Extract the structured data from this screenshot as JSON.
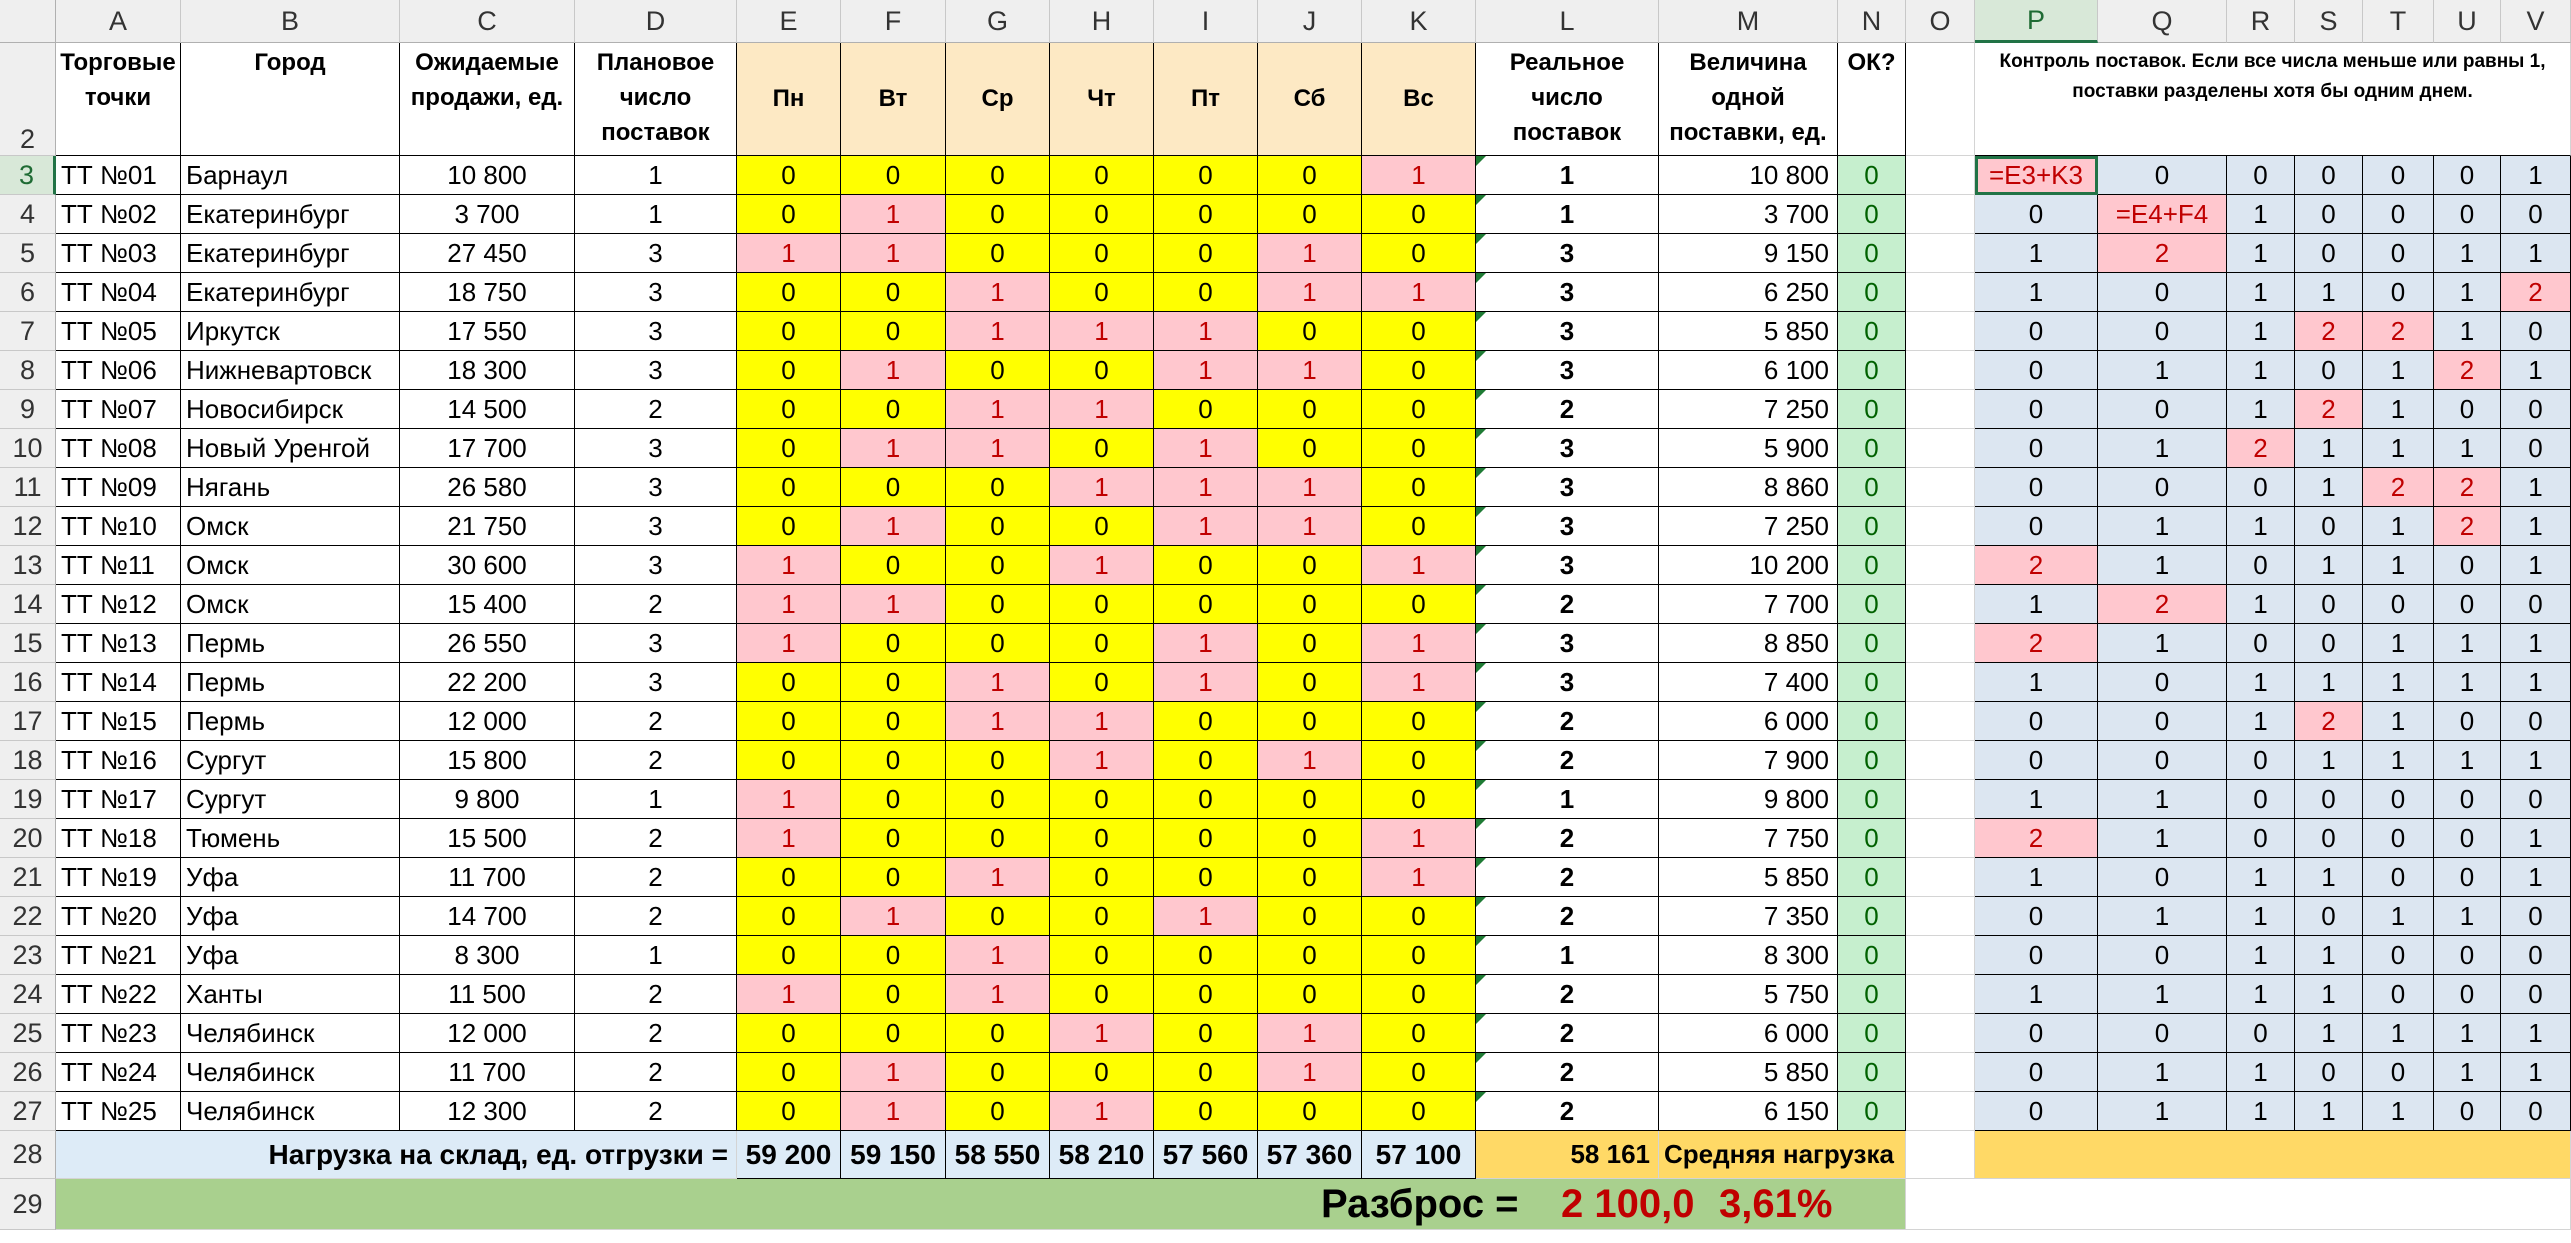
{
  "columns": [
    "A",
    "B",
    "C",
    "D",
    "E",
    "F",
    "G",
    "H",
    "I",
    "J",
    "K",
    "L",
    "M",
    "N",
    "O",
    "P",
    "Q",
    "R",
    "S",
    "T",
    "U",
    "V"
  ],
  "selected_column": "P",
  "selected_row": 3,
  "header": {
    "torg": "Торговые точки",
    "gorod": "Город",
    "ozhid": "Ожидаемые продажи, ед.",
    "plan": "Плановое число поставок",
    "days": [
      "Пн",
      "Вт",
      "Ср",
      "Чт",
      "Пт",
      "Сб",
      "Вс"
    ],
    "real": "Реальное число поставок",
    "velich": "Величина одной поставки, ед.",
    "ok": "ОК?",
    "control_note": "Контроль поставок. Если все числа меньше или равны 1, поставки разделены хотя бы одним днем."
  },
  "rows": [
    {
      "r": "3",
      "tt": "ТТ №01",
      "city": "Барнаул",
      "sales": "10 800",
      "plan": "1",
      "days": [
        "0",
        "0",
        "0",
        "0",
        "0",
        "0",
        "1"
      ],
      "real": "1",
      "size": "10 800",
      "ok": "0",
      "ctl": [
        "=E3+K3",
        "0",
        "0",
        "0",
        "0",
        "0",
        "1"
      ]
    },
    {
      "r": "4",
      "tt": "ТТ №02",
      "city": "Екатеринбург",
      "sales": "3 700",
      "plan": "1",
      "days": [
        "0",
        "1",
        "0",
        "0",
        "0",
        "0",
        "0"
      ],
      "real": "1",
      "size": "3 700",
      "ok": "0",
      "ctl": [
        "0",
        "=E4+F4",
        "1",
        "0",
        "0",
        "0",
        "0"
      ]
    },
    {
      "r": "5",
      "tt": "ТТ №03",
      "city": "Екатеринбург",
      "sales": "27 450",
      "plan": "3",
      "days": [
        "1",
        "1",
        "0",
        "0",
        "0",
        "1",
        "0"
      ],
      "real": "3",
      "size": "9 150",
      "ok": "0",
      "ctl": [
        "1",
        "2",
        "1",
        "0",
        "0",
        "1",
        "1"
      ]
    },
    {
      "r": "6",
      "tt": "ТТ №04",
      "city": "Екатеринбург",
      "sales": "18 750",
      "plan": "3",
      "days": [
        "0",
        "0",
        "1",
        "0",
        "0",
        "1",
        "1"
      ],
      "real": "3",
      "size": "6 250",
      "ok": "0",
      "ctl": [
        "1",
        "0",
        "1",
        "1",
        "0",
        "1",
        "2"
      ]
    },
    {
      "r": "7",
      "tt": "ТТ №05",
      "city": "Иркутск",
      "sales": "17 550",
      "plan": "3",
      "days": [
        "0",
        "0",
        "1",
        "1",
        "1",
        "0",
        "0"
      ],
      "real": "3",
      "size": "5 850",
      "ok": "0",
      "ctl": [
        "0",
        "0",
        "1",
        "2",
        "2",
        "1",
        "0"
      ]
    },
    {
      "r": "8",
      "tt": "ТТ №06",
      "city": "Нижневартовск",
      "sales": "18 300",
      "plan": "3",
      "days": [
        "0",
        "1",
        "0",
        "0",
        "1",
        "1",
        "0"
      ],
      "real": "3",
      "size": "6 100",
      "ok": "0",
      "ctl": [
        "0",
        "1",
        "1",
        "0",
        "1",
        "2",
        "1"
      ]
    },
    {
      "r": "9",
      "tt": "ТТ №07",
      "city": "Новосибирск",
      "sales": "14 500",
      "plan": "2",
      "days": [
        "0",
        "0",
        "1",
        "1",
        "0",
        "0",
        "0"
      ],
      "real": "2",
      "size": "7 250",
      "ok": "0",
      "ctl": [
        "0",
        "0",
        "1",
        "2",
        "1",
        "0",
        "0"
      ]
    },
    {
      "r": "10",
      "tt": "ТТ №08",
      "city": "Новый Уренгой",
      "sales": "17 700",
      "plan": "3",
      "days": [
        "0",
        "1",
        "1",
        "0",
        "1",
        "0",
        "0"
      ],
      "real": "3",
      "size": "5 900",
      "ok": "0",
      "ctl": [
        "0",
        "1",
        "2",
        "1",
        "1",
        "1",
        "0"
      ]
    },
    {
      "r": "11",
      "tt": "ТТ №09",
      "city": "Нягань",
      "sales": "26 580",
      "plan": "3",
      "days": [
        "0",
        "0",
        "0",
        "1",
        "1",
        "1",
        "0"
      ],
      "real": "3",
      "size": "8 860",
      "ok": "0",
      "ctl": [
        "0",
        "0",
        "0",
        "1",
        "2",
        "2",
        "1"
      ]
    },
    {
      "r": "12",
      "tt": "ТТ №10",
      "city": "Омск",
      "sales": "21 750",
      "plan": "3",
      "days": [
        "0",
        "1",
        "0",
        "0",
        "1",
        "1",
        "0"
      ],
      "real": "3",
      "size": "7 250",
      "ok": "0",
      "ctl": [
        "0",
        "1",
        "1",
        "0",
        "1",
        "2",
        "1"
      ]
    },
    {
      "r": "13",
      "tt": "ТТ №11",
      "city": "Омск",
      "sales": "30 600",
      "plan": "3",
      "days": [
        "1",
        "0",
        "0",
        "1",
        "0",
        "0",
        "1"
      ],
      "real": "3",
      "size": "10 200",
      "ok": "0",
      "ctl": [
        "2",
        "1",
        "0",
        "1",
        "1",
        "0",
        "1"
      ]
    },
    {
      "r": "14",
      "tt": "ТТ №12",
      "city": "Омск",
      "sales": "15 400",
      "plan": "2",
      "days": [
        "1",
        "1",
        "0",
        "0",
        "0",
        "0",
        "0"
      ],
      "real": "2",
      "size": "7 700",
      "ok": "0",
      "ctl": [
        "1",
        "2",
        "1",
        "0",
        "0",
        "0",
        "0"
      ]
    },
    {
      "r": "15",
      "tt": "ТТ №13",
      "city": "Пермь",
      "sales": "26 550",
      "plan": "3",
      "days": [
        "1",
        "0",
        "0",
        "0",
        "1",
        "0",
        "1"
      ],
      "real": "3",
      "size": "8 850",
      "ok": "0",
      "ctl": [
        "2",
        "1",
        "0",
        "0",
        "1",
        "1",
        "1"
      ]
    },
    {
      "r": "16",
      "tt": "ТТ №14",
      "city": "Пермь",
      "sales": "22 200",
      "plan": "3",
      "days": [
        "0",
        "0",
        "1",
        "0",
        "1",
        "0",
        "1"
      ],
      "real": "3",
      "size": "7 400",
      "ok": "0",
      "ctl": [
        "1",
        "0",
        "1",
        "1",
        "1",
        "1",
        "1"
      ]
    },
    {
      "r": "17",
      "tt": "ТТ №15",
      "city": "Пермь",
      "sales": "12 000",
      "plan": "2",
      "days": [
        "0",
        "0",
        "1",
        "1",
        "0",
        "0",
        "0"
      ],
      "real": "2",
      "size": "6 000",
      "ok": "0",
      "ctl": [
        "0",
        "0",
        "1",
        "2",
        "1",
        "0",
        "0"
      ]
    },
    {
      "r": "18",
      "tt": "ТТ №16",
      "city": "Сургут",
      "sales": "15 800",
      "plan": "2",
      "days": [
        "0",
        "0",
        "0",
        "1",
        "0",
        "1",
        "0"
      ],
      "real": "2",
      "size": "7 900",
      "ok": "0",
      "ctl": [
        "0",
        "0",
        "0",
        "1",
        "1",
        "1",
        "1"
      ]
    },
    {
      "r": "19",
      "tt": "ТТ №17",
      "city": "Сургут",
      "sales": "9 800",
      "plan": "1",
      "days": [
        "1",
        "0",
        "0",
        "0",
        "0",
        "0",
        "0"
      ],
      "real": "1",
      "size": "9 800",
      "ok": "0",
      "ctl": [
        "1",
        "1",
        "0",
        "0",
        "0",
        "0",
        "0"
      ]
    },
    {
      "r": "20",
      "tt": "ТТ №18",
      "city": "Тюмень",
      "sales": "15 500",
      "plan": "2",
      "days": [
        "1",
        "0",
        "0",
        "0",
        "0",
        "0",
        "1"
      ],
      "real": "2",
      "size": "7 750",
      "ok": "0",
      "ctl": [
        "2",
        "1",
        "0",
        "0",
        "0",
        "0",
        "1"
      ]
    },
    {
      "r": "21",
      "tt": "ТТ №19",
      "city": "Уфа",
      "sales": "11 700",
      "plan": "2",
      "days": [
        "0",
        "0",
        "1",
        "0",
        "0",
        "0",
        "1"
      ],
      "real": "2",
      "size": "5 850",
      "ok": "0",
      "ctl": [
        "1",
        "0",
        "1",
        "1",
        "0",
        "0",
        "1"
      ]
    },
    {
      "r": "22",
      "tt": "ТТ №20",
      "city": "Уфа",
      "sales": "14 700",
      "plan": "2",
      "days": [
        "0",
        "1",
        "0",
        "0",
        "1",
        "0",
        "0"
      ],
      "real": "2",
      "size": "7 350",
      "ok": "0",
      "ctl": [
        "0",
        "1",
        "1",
        "0",
        "1",
        "1",
        "0"
      ]
    },
    {
      "r": "23",
      "tt": "ТТ №21",
      "city": "Уфа",
      "sales": "8 300",
      "plan": "1",
      "days": [
        "0",
        "0",
        "1",
        "0",
        "0",
        "0",
        "0"
      ],
      "real": "1",
      "size": "8 300",
      "ok": "0",
      "ctl": [
        "0",
        "0",
        "1",
        "1",
        "0",
        "0",
        "0"
      ]
    },
    {
      "r": "24",
      "tt": "ТТ №22",
      "city": "Ханты",
      "sales": "11 500",
      "plan": "2",
      "days": [
        "1",
        "0",
        "1",
        "0",
        "0",
        "0",
        "0"
      ],
      "real": "2",
      "size": "5 750",
      "ok": "0",
      "ctl": [
        "1",
        "1",
        "1",
        "1",
        "0",
        "0",
        "0"
      ]
    },
    {
      "r": "25",
      "tt": "ТТ №23",
      "city": "Челябинск",
      "sales": "12 000",
      "plan": "2",
      "days": [
        "0",
        "0",
        "0",
        "1",
        "0",
        "1",
        "0"
      ],
      "real": "2",
      "size": "6 000",
      "ok": "0",
      "ctl": [
        "0",
        "0",
        "0",
        "1",
        "1",
        "1",
        "1"
      ]
    },
    {
      "r": "26",
      "tt": "ТТ №24",
      "city": "Челябинск",
      "sales": "11 700",
      "plan": "2",
      "days": [
        "0",
        "1",
        "0",
        "0",
        "0",
        "1",
        "0"
      ],
      "real": "2",
      "size": "5 850",
      "ok": "0",
      "ctl": [
        "0",
        "1",
        "1",
        "0",
        "0",
        "1",
        "1"
      ]
    },
    {
      "r": "27",
      "tt": "ТТ №25",
      "city": "Челябинск",
      "sales": "12 300",
      "plan": "2",
      "days": [
        "0",
        "1",
        "0",
        "1",
        "0",
        "0",
        "0"
      ],
      "real": "2",
      "size": "6 150",
      "ok": "0",
      "ctl": [
        "0",
        "1",
        "1",
        "1",
        "1",
        "0",
        "0"
      ]
    }
  ],
  "row28": {
    "label": "Нагрузка на склад, ед. отгрузки =",
    "loads": [
      "59 200",
      "59 150",
      "58 550",
      "58 210",
      "57 560",
      "57 360",
      "57 100"
    ],
    "avg_value": "58 161",
    "avg_label": "Средняя нагрузка"
  },
  "row29": {
    "label": "Разброс =",
    "value": "2 100,0",
    "percent": "3,61%"
  },
  "colors": {
    "day_yellow": "#ffff00",
    "pink": "#ffc7ce",
    "pink_text": "#c00000",
    "ok_green": "#c6efce",
    "control_blue": "#dce6f1",
    "selection": "#217346"
  }
}
